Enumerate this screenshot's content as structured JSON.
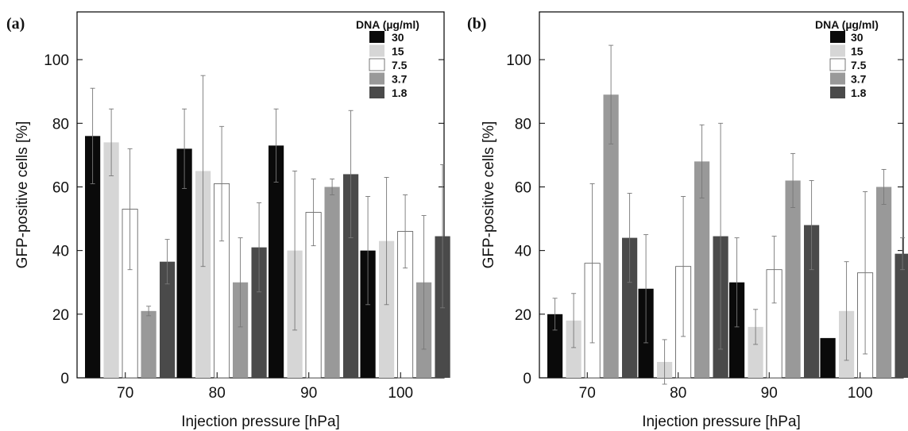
{
  "chart_data": [
    {
      "type": "bar",
      "panel_label": "(a)",
      "xlabel": "Injection pressure [hPa]",
      "ylabel": "GFP-positive cells [%]",
      "ylim": [
        0,
        115
      ],
      "yticks": [
        0,
        20,
        40,
        60,
        80,
        100
      ],
      "categories": [
        "70",
        "80",
        "90",
        "100"
      ],
      "legend": {
        "title": "DNA (µg/ml)",
        "position": "top-right"
      },
      "series": [
        {
          "name": "30",
          "color": "#0a0a0a",
          "values": [
            76,
            72,
            73,
            40
          ],
          "errors": [
            15,
            12.5,
            11.5,
            17
          ]
        },
        {
          "name": "15",
          "color": "#d6d6d6",
          "values": [
            74,
            65,
            40,
            43
          ],
          "errors": [
            10.5,
            30,
            25,
            20
          ]
        },
        {
          "name": "7.5",
          "color": "#ffffff",
          "values": [
            53,
            61,
            52,
            46
          ],
          "errors": [
            19,
            18,
            10.5,
            11.5
          ]
        },
        {
          "name": "3.7",
          "color": "#999999",
          "values": [
            21,
            30,
            60,
            30
          ],
          "errors": [
            1.5,
            14,
            2.5,
            21
          ]
        },
        {
          "name": "1.8",
          "color": "#4a4a4a",
          "values": [
            36.5,
            41,
            64,
            44.5
          ],
          "errors": [
            7,
            14,
            20,
            22.5
          ]
        }
      ]
    },
    {
      "type": "bar",
      "panel_label": "(b)",
      "xlabel": "Injection pressure [hPa]",
      "ylabel": "GFP-positive cells [%]",
      "ylim": [
        0,
        115
      ],
      "yticks": [
        0,
        20,
        40,
        60,
        80,
        100
      ],
      "categories": [
        "70",
        "80",
        "90",
        "100"
      ],
      "legend": {
        "title": "DNA (µg/ml)",
        "position": "top-right"
      },
      "series": [
        {
          "name": "30",
          "color": "#0a0a0a",
          "values": [
            20,
            28,
            30,
            12.5
          ],
          "errors": [
            5,
            17,
            14,
            0
          ]
        },
        {
          "name": "15",
          "color": "#d6d6d6",
          "values": [
            18,
            5,
            16,
            21
          ],
          "errors": [
            8.5,
            7,
            5.5,
            15.5
          ]
        },
        {
          "name": "7.5",
          "color": "#ffffff",
          "values": [
            36,
            35,
            34,
            33
          ],
          "errors": [
            25,
            22,
            10.5,
            25.5
          ]
        },
        {
          "name": "3.7",
          "color": "#999999",
          "values": [
            89,
            68,
            62,
            60
          ],
          "errors": [
            15.5,
            11.5,
            8.5,
            5.5
          ]
        },
        {
          "name": "1.8",
          "color": "#4a4a4a",
          "values": [
            44,
            44.5,
            48,
            39
          ],
          "errors": [
            14,
            35.5,
            14,
            5
          ]
        }
      ]
    }
  ]
}
